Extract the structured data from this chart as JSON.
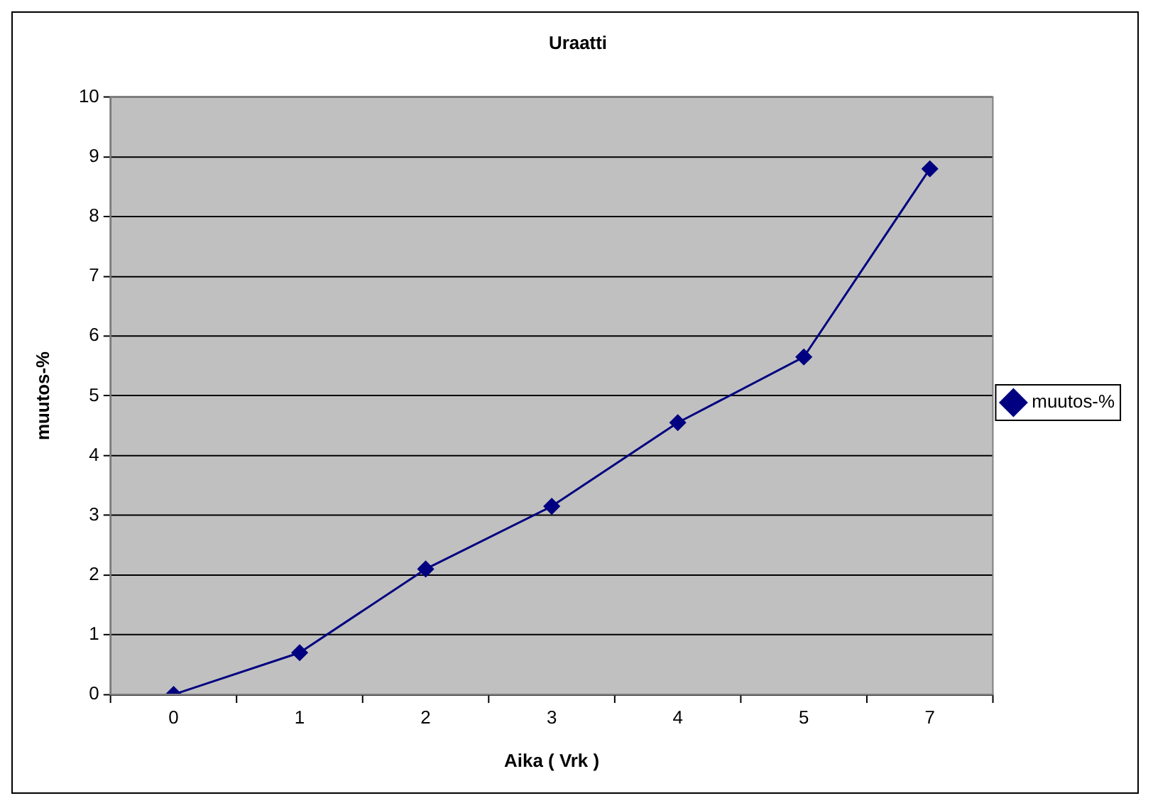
{
  "chart_data": {
    "type": "line",
    "title": "Uraatti",
    "xlabel": "Aika ( Vrk )",
    "ylabel": "muutos-%",
    "categories": [
      "0",
      "1",
      "2",
      "3",
      "4",
      "5",
      "7"
    ],
    "series": [
      {
        "name": "muutos-%",
        "color": "#000080",
        "values": [
          0,
          0.7,
          2.1,
          3.15,
          4.55,
          5.65,
          8.8
        ]
      }
    ],
    "ylim": [
      0,
      10
    ],
    "yticks": [
      0,
      1,
      2,
      3,
      4,
      5,
      6,
      7,
      8,
      9,
      10
    ],
    "grid": "y",
    "legend": "right",
    "marker": "diamond",
    "line_style": "solid"
  }
}
